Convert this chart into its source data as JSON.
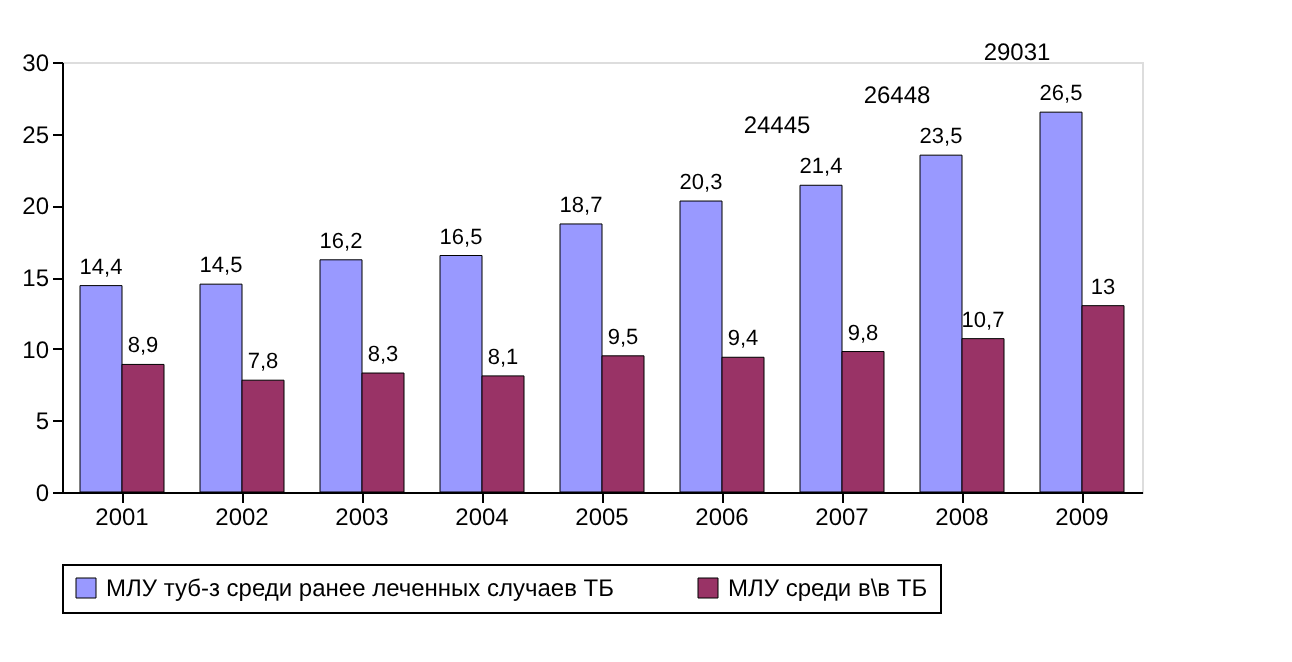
{
  "chart_data": {
    "type": "bar",
    "categories": [
      "2001",
      "2002",
      "2003",
      "2004",
      "2005",
      "2006",
      "2007",
      "2008",
      "2009"
    ],
    "series": [
      {
        "name": "МЛУ туб-з среди ранее леченных случаев ТБ",
        "color": "#9999ff",
        "values": [
          14.4,
          14.5,
          16.2,
          16.5,
          18.7,
          20.3,
          21.4,
          23.5,
          26.5
        ],
        "value_labels": [
          "14,4",
          "14,5",
          "16,2",
          "16,5",
          "18,7",
          "20,3",
          "21,4",
          "23,5",
          "26,5"
        ]
      },
      {
        "name": "МЛУ среди в\\в ТБ",
        "color": "#993366",
        "values": [
          8.9,
          7.8,
          8.3,
          8.1,
          9.5,
          9.4,
          9.8,
          10.7,
          13
        ],
        "value_labels": [
          "8,9",
          "7,8",
          "8,3",
          "8,1",
          "9,5",
          "9,4",
          "9,8",
          "10,7",
          "13"
        ]
      }
    ],
    "annotations": [
      {
        "text": "24445",
        "x": "2007",
        "y": 21.4
      },
      {
        "text": "26448",
        "x": "2008",
        "y": 23.5
      },
      {
        "text": "29031",
        "x": "2009",
        "y": 26.5
      }
    ],
    "ylim": [
      0,
      30
    ],
    "yticks": [
      0,
      5,
      10,
      15,
      20,
      25,
      30
    ],
    "grid": false,
    "legend": "bottom"
  }
}
